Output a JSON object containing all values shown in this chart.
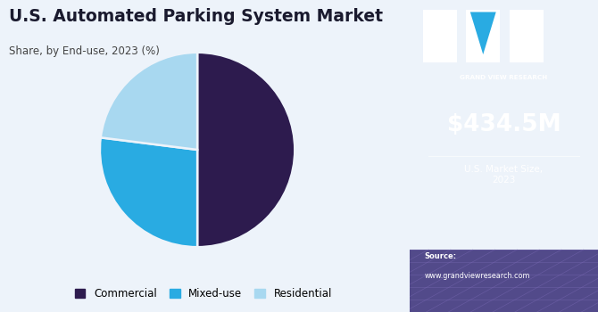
{
  "title": "U.S. Automated Parking System Market",
  "subtitle": "Share, by End-use, 2023 (%)",
  "pie_labels": [
    "Commercial",
    "Mixed-use",
    "Residential"
  ],
  "pie_values": [
    50,
    27,
    23
  ],
  "pie_colors": [
    "#2d1b4e",
    "#29abe2",
    "#a8d8f0"
  ],
  "pie_startangle": 90,
  "legend_labels": [
    "Commercial",
    "Mixed-use",
    "Residential"
  ],
  "left_bg": "#edf3fa",
  "right_bg": "#3a1a6b",
  "right_bg_bottom": "#524a8a",
  "market_size": "$434.5M",
  "market_label": "U.S. Market Size,\n2023",
  "source_label": "Source:",
  "source_url": "www.grandviewresearch.com",
  "title_color": "#1a1a2e",
  "subtitle_color": "#444444",
  "gvr_label": "GRAND VIEW RESEARCH"
}
